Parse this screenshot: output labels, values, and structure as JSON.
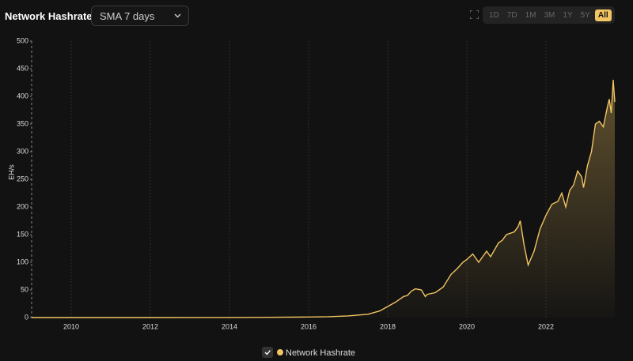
{
  "header": {
    "title": "Network Hashrate",
    "dropdown": "SMA 7 days",
    "ranges": [
      "1D",
      "7D",
      "1M",
      "3M",
      "1Y",
      "5Y",
      "All"
    ],
    "active_range": 6
  },
  "chart_data": {
    "type": "area",
    "y_label": "EH/s",
    "x": [
      2009.0,
      2010.0,
      2012.0,
      2014.0,
      2015.0,
      2016.0,
      2016.5,
      2017.0,
      2017.5,
      2017.8,
      2018.0,
      2018.2,
      2018.4,
      2018.5,
      2018.6,
      2018.7,
      2018.85,
      2018.95,
      2019.0,
      2019.2,
      2019.4,
      2019.6,
      2019.75,
      2019.9,
      2020.0,
      2020.15,
      2020.3,
      2020.4,
      2020.5,
      2020.6,
      2020.8,
      2020.9,
      2021.0,
      2021.2,
      2021.3,
      2021.35,
      2021.45,
      2021.55,
      2021.7,
      2021.85,
      2022.0,
      2022.15,
      2022.3,
      2022.4,
      2022.5,
      2022.6,
      2022.7,
      2022.8,
      2022.9,
      2022.95,
      2023.05,
      2023.15,
      2023.25,
      2023.35,
      2023.45,
      2023.55,
      2023.6,
      2023.65,
      2023.7,
      2023.74
    ],
    "series": [
      {
        "name": "Network Hashrate",
        "color": "#f2c462",
        "values": [
          0,
          0,
          0,
          0.1,
          0.4,
          1,
          1.5,
          3,
          6,
          12,
          20,
          28,
          38,
          40,
          48,
          52,
          50,
          38,
          42,
          45,
          55,
          78,
          88,
          100,
          105,
          115,
          100,
          110,
          120,
          110,
          135,
          140,
          150,
          155,
          165,
          175,
          130,
          95,
          120,
          160,
          185,
          205,
          210,
          225,
          200,
          230,
          240,
          265,
          255,
          235,
          275,
          300,
          350,
          355,
          345,
          380,
          395,
          370,
          430,
          390
        ]
      }
    ],
    "xlim": [
      2009.0,
      2023.74
    ],
    "xticks": [
      2010,
      2012,
      2014,
      2016,
      2018,
      2020,
      2022
    ],
    "ylim": [
      0,
      500
    ],
    "yticks": [
      0,
      50,
      100,
      150,
      200,
      250,
      300,
      350,
      400,
      450,
      500
    ],
    "grid": true
  }
}
